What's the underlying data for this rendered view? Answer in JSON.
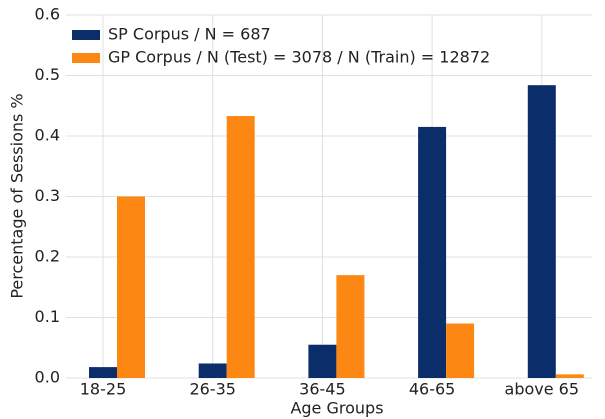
{
  "chart_data": {
    "type": "bar",
    "xlabel": "Age Groups",
    "ylabel": "Percentage of Sessions %",
    "categories": [
      "18-25",
      "26-35",
      "36-45",
      "46-65",
      "above 65"
    ],
    "series": [
      {
        "name": "SP Corpus / N = 687",
        "color": "#0b2d69",
        "values": [
          0.018,
          0.024,
          0.055,
          0.415,
          0.484
        ]
      },
      {
        "name": "GP Corpus / N (Test) = 3078 / N (Train) = 12872",
        "color": "#fd8713",
        "values": [
          0.3,
          0.433,
          0.17,
          0.09,
          0.006
        ]
      }
    ],
    "ylim": [
      0,
      0.6
    ],
    "yticks": [
      {
        "value": 0,
        "label": "0.0"
      },
      0.1,
      0.2,
      0.3,
      0.4,
      0.5,
      0.6
    ],
    "grid": true,
    "legend": "upper left"
  }
}
